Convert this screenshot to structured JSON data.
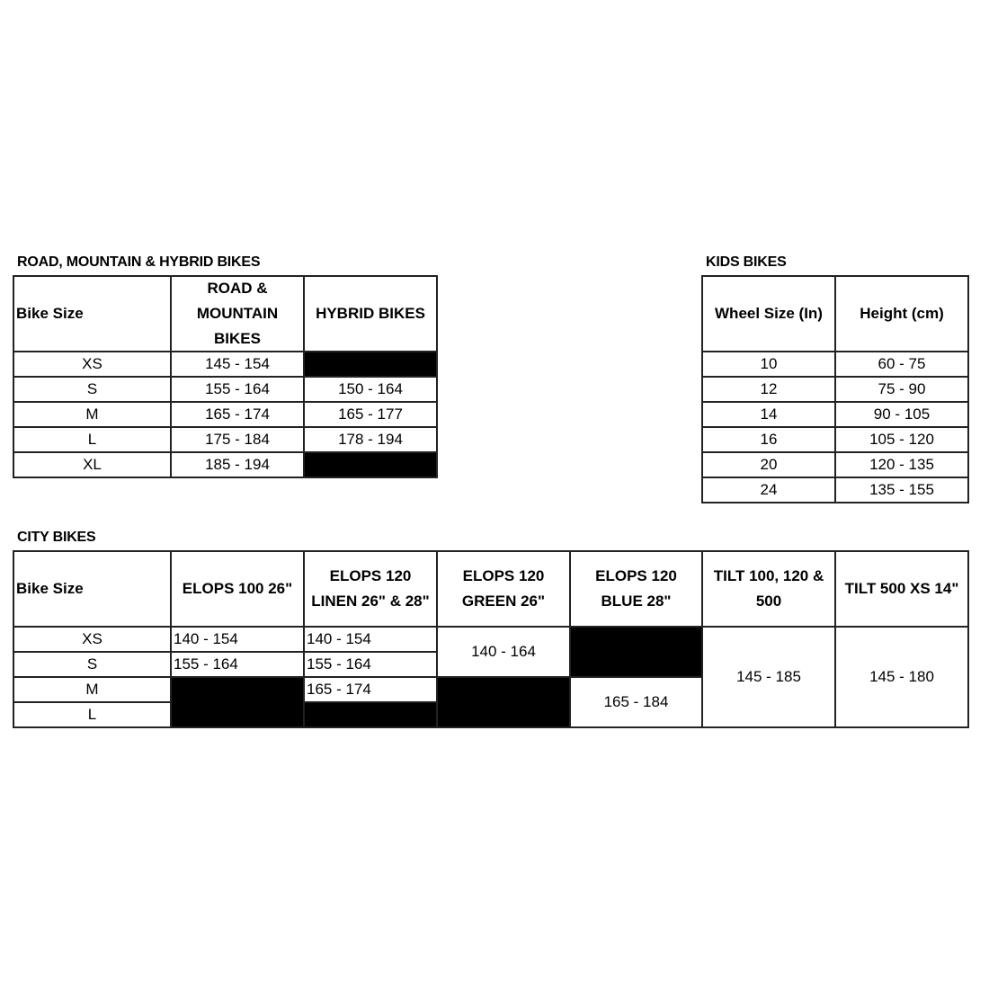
{
  "road": {
    "title": "ROAD, MOUNTAIN & HYBRID BIKES",
    "cells": [
      {
        "r": 1,
        "c": 1,
        "text": "Bike Size",
        "hdr": true,
        "left": true
      },
      {
        "r": 1,
        "c": 2,
        "text": "ROAD & MOUNTAIN BIKES",
        "hdr": true
      },
      {
        "r": 1,
        "c": 3,
        "text": "HYBRID BIKES",
        "hdr": true
      },
      {
        "r": 2,
        "c": 1,
        "text": "XS"
      },
      {
        "r": 2,
        "c": 2,
        "text": "145 - 154"
      },
      {
        "r": 2,
        "c": 3,
        "black": true
      },
      {
        "r": 3,
        "c": 1,
        "text": "S"
      },
      {
        "r": 3,
        "c": 2,
        "text": "155 - 164"
      },
      {
        "r": 3,
        "c": 3,
        "text": "150 - 164"
      },
      {
        "r": 4,
        "c": 1,
        "text": "M"
      },
      {
        "r": 4,
        "c": 2,
        "text": "165 - 174"
      },
      {
        "r": 4,
        "c": 3,
        "text": "165 - 177"
      },
      {
        "r": 5,
        "c": 1,
        "text": "L"
      },
      {
        "r": 5,
        "c": 2,
        "text": "175 - 184"
      },
      {
        "r": 5,
        "c": 3,
        "text": "178 - 194"
      },
      {
        "r": 6,
        "c": 1,
        "text": "XL"
      },
      {
        "r": 6,
        "c": 2,
        "text": "185 - 194"
      },
      {
        "r": 6,
        "c": 3,
        "black": true
      }
    ]
  },
  "kids": {
    "title": "KIDS BIKES",
    "cells": [
      {
        "r": 1,
        "c": 1,
        "text": "Wheel Size (In)",
        "hdr": true
      },
      {
        "r": 1,
        "c": 2,
        "text": "Height (cm)",
        "hdr": true
      },
      {
        "r": 2,
        "c": 1,
        "text": "10"
      },
      {
        "r": 2,
        "c": 2,
        "text": "60 - 75"
      },
      {
        "r": 3,
        "c": 1,
        "text": "12"
      },
      {
        "r": 3,
        "c": 2,
        "text": "75 - 90"
      },
      {
        "r": 4,
        "c": 1,
        "text": "14"
      },
      {
        "r": 4,
        "c": 2,
        "text": "90 - 105"
      },
      {
        "r": 5,
        "c": 1,
        "text": "16"
      },
      {
        "r": 5,
        "c": 2,
        "text": "105 - 120"
      },
      {
        "r": 6,
        "c": 1,
        "text": "20"
      },
      {
        "r": 6,
        "c": 2,
        "text": "120 - 135"
      },
      {
        "r": 7,
        "c": 1,
        "text": "24"
      },
      {
        "r": 7,
        "c": 2,
        "text": "135 - 155"
      }
    ]
  },
  "city": {
    "title": "CITY BIKES",
    "cells": [
      {
        "r": 1,
        "c": 1,
        "text": "Bike Size",
        "hdr": true,
        "left": true
      },
      {
        "r": 1,
        "c": 2,
        "text": "ELOPS 100 26\"",
        "hdr": true
      },
      {
        "r": 1,
        "c": 3,
        "text": "ELOPS 120 LINEN 26\" & 28\"",
        "hdr": true
      },
      {
        "r": 1,
        "c": 4,
        "text": "ELOPS 120 GREEN 26\"",
        "hdr": true
      },
      {
        "r": 1,
        "c": 5,
        "text": "ELOPS 120 BLUE 28\"",
        "hdr": true
      },
      {
        "r": 1,
        "c": 6,
        "text": "TILT 100, 120 & 500",
        "hdr": true
      },
      {
        "r": 1,
        "c": 7,
        "text": "TILT 500 XS 14\"",
        "hdr": true
      },
      {
        "r": 2,
        "c": 1,
        "text": "XS"
      },
      {
        "r": 2,
        "c": 2,
        "text": "140 - 154",
        "left": true
      },
      {
        "r": 2,
        "c": 3,
        "text": "140 - 154",
        "left": true
      },
      {
        "r": 2,
        "c": 4,
        "rs": 2,
        "text": "140 - 164"
      },
      {
        "r": 2,
        "c": 5,
        "rs": 2,
        "black": true
      },
      {
        "r": 2,
        "c": 6,
        "rs": 4,
        "text": "145 - 185"
      },
      {
        "r": 2,
        "c": 7,
        "rs": 4,
        "text": "145 - 180"
      },
      {
        "r": 3,
        "c": 1,
        "text": "S"
      },
      {
        "r": 3,
        "c": 2,
        "text": "155 - 164",
        "left": true
      },
      {
        "r": 3,
        "c": 3,
        "text": "155 - 164",
        "left": true
      },
      {
        "r": 4,
        "c": 1,
        "text": "M"
      },
      {
        "r": 4,
        "c": 2,
        "rs": 2,
        "black": true
      },
      {
        "r": 4,
        "c": 3,
        "text": "165 - 174",
        "left": true
      },
      {
        "r": 4,
        "c": 4,
        "rs": 2,
        "black": true
      },
      {
        "r": 4,
        "c": 5,
        "rs": 2,
        "text": "165 - 184"
      },
      {
        "r": 5,
        "c": 1,
        "text": "L"
      },
      {
        "r": 5,
        "c": 3,
        "black": true
      }
    ]
  }
}
